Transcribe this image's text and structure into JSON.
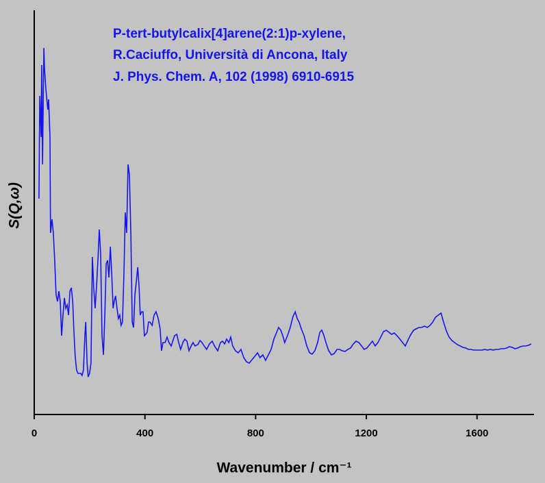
{
  "chart_data": {
    "type": "line",
    "annotations": [
      "P-tert-butylcalix[4]arene(2:1)p-xylene,",
      "R.Caciuffo,  Università di Ancona, Italy",
      "J. Phys. Chem. A, 102 (1998) 6910-6915"
    ],
    "xlabel": "Wavenumber / cm⁻¹",
    "ylabel": "S(Q,ω)",
    "xlim": [
      0,
      1806
    ],
    "xticks": [
      0,
      400,
      800,
      1200,
      1600
    ],
    "ylim": [
      0,
      590
    ],
    "series": [
      {
        "color": "#1414f0",
        "x": [
          17,
          20,
          25,
          27,
          30,
          35,
          37,
          42,
          49,
          52,
          57,
          59,
          64,
          69,
          74,
          79,
          84,
          89,
          94,
          99,
          104,
          109,
          114,
          119,
          124,
          129,
          134,
          139,
          143,
          148,
          153,
          158,
          168,
          173,
          178,
          183,
          186,
          191,
          195,
          200,
          205,
          210,
          215,
          220,
          225,
          230,
          235,
          240,
          245,
          250,
          255,
          260,
          265,
          270,
          275,
          280,
          285,
          289,
          294,
          299,
          304,
          309,
          314,
          319,
          324,
          329,
          334,
          339,
          344,
          349,
          354,
          359,
          364,
          369,
          374,
          379,
          383,
          388,
          393,
          398,
          403,
          408,
          413,
          418,
          426,
          433,
          440,
          448,
          455,
          460,
          465,
          473,
          480,
          487,
          495,
          507,
          515,
          522,
          529,
          537,
          544,
          552,
          559,
          567,
          574,
          581,
          591,
          599,
          606,
          614,
          623,
          633,
          643,
          653,
          663,
          673,
          680,
          688,
          695,
          703,
          710,
          717,
          727,
          737,
          747,
          757,
          767,
          777,
          787,
          797,
          807,
          816,
          826,
          836,
          846,
          856,
          866,
          876,
          883,
          891,
          898,
          905,
          915,
          925,
          935,
          943,
          950,
          957,
          965,
          975,
          985,
          995,
          1004,
          1014,
          1024,
          1032,
          1039,
          1047,
          1054,
          1064,
          1074,
          1084,
          1094,
          1103,
          1113,
          1123,
          1133,
          1143,
          1153,
          1163,
          1173,
          1183,
          1192,
          1202,
          1212,
          1222,
          1232,
          1242,
          1252,
          1262,
          1272,
          1282,
          1291,
          1301,
          1311,
          1321,
          1331,
          1341,
          1351,
          1361,
          1371,
          1380,
          1390,
          1400,
          1410,
          1420,
          1430,
          1440,
          1450,
          1460,
          1470,
          1479,
          1489,
          1499,
          1509,
          1519,
          1529,
          1539,
          1549,
          1559,
          1569,
          1578,
          1588,
          1598,
          1608,
          1618,
          1628,
          1638,
          1648,
          1658,
          1668,
          1677,
          1687,
          1697,
          1707,
          1717,
          1727,
          1737,
          1747,
          1757,
          1767,
          1776,
          1786,
          1796
        ],
        "values": [
          315,
          465,
          405,
          510,
          365,
          535,
          505,
          475,
          445,
          460,
          405,
          265,
          285,
          265,
          225,
          175,
          165,
          180,
          165,
          115,
          145,
          170,
          155,
          160,
          145,
          180,
          185,
          165,
          125,
          85,
          65,
          60,
          60,
          57,
          65,
          115,
          135,
          75,
          55,
          60,
          75,
          230,
          185,
          155,
          185,
          225,
          270,
          235,
          115,
          87,
          145,
          220,
          225,
          200,
          245,
          205,
          155,
          165,
          173,
          155,
          140,
          145,
          130,
          135,
          205,
          295,
          265,
          365,
          350,
          265,
          135,
          127,
          175,
          195,
          215,
          185,
          145,
          150,
          150,
          115,
          117,
          120,
          135,
          135,
          130,
          145,
          150,
          140,
          125,
          93,
          105,
          105,
          113,
          105,
          100,
          115,
          117,
          105,
          95,
          105,
          110,
          107,
          93,
          100,
          105,
          100,
          102,
          108,
          105,
          100,
          95,
          103,
          107,
          99,
          93,
          105,
          107,
          103,
          110,
          105,
          113,
          100,
          93,
          90,
          95,
          83,
          77,
          75,
          80,
          85,
          90,
          83,
          87,
          79,
          87,
          95,
          110,
          120,
          127,
          123,
          115,
          105,
          115,
          127,
          143,
          150,
          140,
          135,
          125,
          115,
          100,
          90,
          88,
          93,
          105,
          120,
          123,
          115,
          105,
          93,
          87,
          89,
          95,
          95,
          93,
          92,
          95,
          97,
          103,
          107,
          105,
          100,
          95,
          97,
          102,
          107,
          100,
          105,
          113,
          121,
          123,
          120,
          117,
          119,
          115,
          110,
          105,
          100,
          109,
          117,
          123,
          125,
          127,
          127,
          129,
          127,
          130,
          135,
          142,
          145,
          148,
          135,
          122,
          113,
          108,
          105,
          102,
          100,
          98,
          97,
          95,
          95,
          94,
          94,
          94,
          94,
          95,
          94,
          95,
          94,
          95,
          95,
          96,
          96,
          97,
          99,
          98,
          96,
          97,
          99,
          100,
          100,
          101,
          103
        ]
      }
    ]
  }
}
